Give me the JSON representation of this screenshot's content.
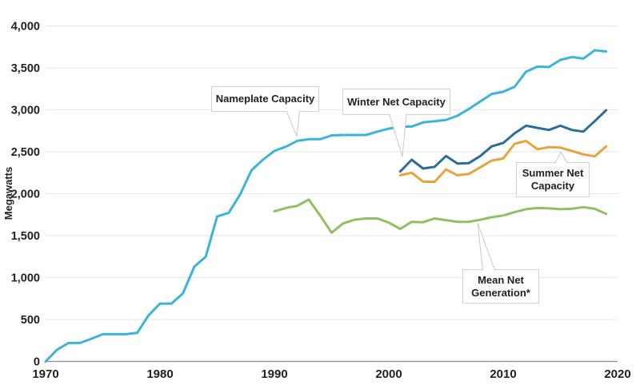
{
  "chart_data": {
    "type": "line",
    "title": "",
    "xlabel": "",
    "ylabel": "Megawatts",
    "xlim": [
      1970,
      2020
    ],
    "ylim": [
      0,
      4000
    ],
    "grid": true,
    "x_ticks": [
      {
        "value": 1970,
        "label": "1970"
      },
      {
        "value": 1980,
        "label": "1980"
      },
      {
        "value": 1990,
        "label": "1990"
      },
      {
        "value": 2000,
        "label": "2000"
      },
      {
        "value": 2010,
        "label": "2010"
      },
      {
        "value": 2020,
        "label": "2020"
      }
    ],
    "y_ticks": [
      {
        "value": 0,
        "label": "0"
      },
      {
        "value": 500,
        "label": "500"
      },
      {
        "value": 1000,
        "label": "1,000"
      },
      {
        "value": 1500,
        "label": "1,500"
      },
      {
        "value": 2000,
        "label": "2,000"
      },
      {
        "value": 2500,
        "label": "2,500"
      },
      {
        "value": 3000,
        "label": "3,000"
      },
      {
        "value": 3500,
        "label": "3,500"
      },
      {
        "value": 4000,
        "label": "4,000"
      }
    ],
    "series": [
      {
        "name": "Nameplate Capacity",
        "color": "#3ab4da",
        "start_year": 1970,
        "values": [
          0,
          140,
          220,
          220,
          270,
          325,
          325,
          325,
          340,
          550,
          690,
          690,
          810,
          1130,
          1250,
          1730,
          1770,
          1990,
          2280,
          2405,
          2510,
          2560,
          2630,
          2650,
          2650,
          2695,
          2700,
          2700,
          2700,
          2740,
          2775,
          2800,
          2800,
          2850,
          2865,
          2880,
          2930,
          3010,
          3100,
          3190,
          3215,
          3275,
          3455,
          3515,
          3510,
          3595,
          3630,
          3610,
          3710,
          3695
        ]
      },
      {
        "name": "Mean Net Generation*",
        "color": "#8fc162",
        "start_year": 1990,
        "values": [
          1790,
          1830,
          1855,
          1930,
          1740,
          1535,
          1645,
          1690,
          1705,
          1705,
          1655,
          1580,
          1665,
          1660,
          1705,
          1685,
          1665,
          1665,
          1690,
          1720,
          1740,
          1780,
          1815,
          1830,
          1825,
          1815,
          1820,
          1840,
          1820,
          1760
        ]
      },
      {
        "name": "Summer Net Capacity",
        "color": "#e8a33d",
        "start_year": 2001,
        "values": [
          2220,
          2250,
          2145,
          2140,
          2290,
          2220,
          2235,
          2315,
          2395,
          2420,
          2595,
          2630,
          2530,
          2555,
          2550,
          2510,
          2470,
          2445,
          2565
        ]
      },
      {
        "name": "Winter Net Capacity",
        "color": "#2c6e9b",
        "start_year": 2001,
        "values": [
          2265,
          2405,
          2300,
          2320,
          2450,
          2360,
          2365,
          2450,
          2565,
          2605,
          2720,
          2810,
          2785,
          2760,
          2810,
          2760,
          2740,
          2865,
          2995
        ]
      }
    ],
    "annotations": {
      "nameplate": {
        "line1": "Nameplate Capacity"
      },
      "winter": {
        "line1": "Winter Net Capacity"
      },
      "summer": {
        "line1": "Summer Net",
        "line2": "Capacity"
      },
      "mean": {
        "line1": "Mean Net",
        "line2": "Generation*"
      }
    }
  },
  "colors": {
    "grid": "#e6e6e6",
    "axis": "#8c8c8c",
    "text": "#231f20",
    "callout_border": "#c8c8c8"
  }
}
